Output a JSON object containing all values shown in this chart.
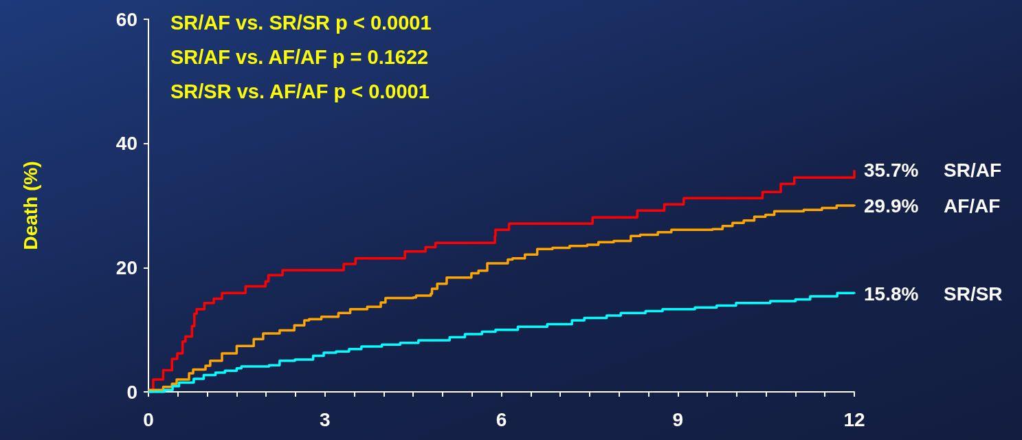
{
  "chart_data": {
    "type": "step",
    "ylabel": "Death (%)",
    "xlim": [
      0,
      12
    ],
    "xticks": [
      0,
      {
        "value": 0.5,
        "label": null
      },
      {
        "value": 1,
        "label": null
      },
      {
        "value": 1.5,
        "label": null
      },
      {
        "value": 2,
        "label": null
      },
      {
        "value": 2.5,
        "label": null
      },
      3,
      {
        "value": 3.5,
        "label": null
      },
      {
        "value": 4,
        "label": null
      },
      {
        "value": 4.5,
        "label": null
      },
      {
        "value": 5,
        "label": null
      },
      {
        "value": 5.5,
        "label": null
      },
      6,
      {
        "value": 6.5,
        "label": null
      },
      {
        "value": 7,
        "label": null
      },
      {
        "value": 7.5,
        "label": null
      },
      {
        "value": 8,
        "label": null
      },
      {
        "value": 8.5,
        "label": null
      },
      9,
      {
        "value": 9.5,
        "label": null
      },
      {
        "value": 10,
        "label": null
      },
      {
        "value": 10.5,
        "label": null
      },
      {
        "value": 11,
        "label": null
      },
      {
        "value": 11.5,
        "label": null
      },
      12
    ],
    "ylim": [
      0,
      60
    ],
    "yticks": [
      0,
      20,
      40,
      60
    ],
    "grid": false,
    "annotations": [
      "SR/AF vs. SR/SR p < 0.0001",
      "SR/AF vs. AF/AF p = 0.1622",
      "SR/SR vs. AF/AF p < 0.0001"
    ],
    "series": [
      {
        "name": "SR/AF",
        "color": "#ff0000",
        "x": [
          0,
          0.08,
          0.25,
          0.4,
          0.49,
          0.58,
          0.63,
          0.74,
          0.78,
          0.82,
          0.95,
          1.11,
          1.25,
          1.65,
          1.99,
          2.04,
          2.28,
          3.32,
          3.52,
          4.36,
          4.71,
          4.88,
          5.89,
          5.9,
          6.13,
          7.55,
          8.31,
          8.77,
          9.1,
          10.44,
          10.75,
          10.98,
          12
        ],
        "values": [
          0,
          2.0,
          3.5,
          5.3,
          6.2,
          8.1,
          8.9,
          10.6,
          12.6,
          13.3,
          14.3,
          15.0,
          15.9,
          17.0,
          17.8,
          18.8,
          19.6,
          20.6,
          21.5,
          22.6,
          23.3,
          24.0,
          25.1,
          26.1,
          27.1,
          28.1,
          29.2,
          30.2,
          31.2,
          32.2,
          33.5,
          34.5,
          35.7
        ],
        "value_labels": [
          null,
          null,
          null,
          null,
          null,
          null,
          null,
          null,
          null,
          null,
          null,
          null,
          null,
          null,
          null,
          null,
          null,
          null,
          null,
          null,
          null,
          null,
          null,
          null,
          null,
          null,
          null,
          null,
          null,
          null,
          null,
          null,
          "35.7%"
        ]
      },
      {
        "name": "AF/AF",
        "color": "#ffa500",
        "x": [
          0,
          0.25,
          0.4,
          0.48,
          0.69,
          0.76,
          0.97,
          1.05,
          1.25,
          1.5,
          1.79,
          1.95,
          2.23,
          2.48,
          2.65,
          2.73,
          2.94,
          3.23,
          3.43,
          3.72,
          3.95,
          4.03,
          4.5,
          4.55,
          4.8,
          4.82,
          4.91,
          5.07,
          5.49,
          5.61,
          5.76,
          6.11,
          6.19,
          6.4,
          6.61,
          6.87,
          7.16,
          7.46,
          7.65,
          7.91,
          8.2,
          8.36,
          8.66,
          8.89,
          9.59,
          9.76,
          9.93,
          10.12,
          10.3,
          10.49,
          10.64,
          11.14,
          11.45,
          11.7,
          12
        ],
        "values": [
          0.3,
          0.8,
          1.3,
          2.0,
          3.0,
          3.6,
          4.2,
          5.0,
          6.2,
          7.4,
          8.5,
          9.4,
          9.9,
          10.7,
          11.5,
          11.7,
          12.1,
          12.7,
          13.3,
          13.7,
          14.4,
          15.1,
          15.2,
          15.5,
          15.8,
          16.6,
          17.4,
          18.4,
          19.1,
          19.5,
          20.7,
          21.3,
          21.5,
          22.1,
          23.0,
          23.2,
          23.5,
          23.7,
          24.1,
          24.3,
          25.1,
          25.3,
          25.7,
          26.1,
          26.2,
          26.7,
          27.2,
          27.6,
          28.2,
          28.5,
          29.1,
          29.3,
          29.6,
          30.0,
          29.9
        ],
        "value_labels": [
          null,
          null,
          null,
          null,
          null,
          null,
          null,
          null,
          null,
          null,
          null,
          null,
          null,
          null,
          null,
          null,
          null,
          null,
          null,
          null,
          null,
          null,
          null,
          null,
          null,
          null,
          null,
          null,
          null,
          null,
          null,
          null,
          null,
          null,
          null,
          null,
          null,
          null,
          null,
          null,
          null,
          null,
          null,
          null,
          null,
          null,
          null,
          null,
          null,
          null,
          null,
          null,
          null,
          null,
          "29.9%"
        ]
      },
      {
        "name": "SR/SR",
        "color": "#00ffff",
        "x": [
          0,
          0.27,
          0.41,
          0.52,
          0.77,
          0.94,
          1.14,
          1.3,
          1.5,
          1.58,
          2.05,
          2.23,
          2.49,
          2.8,
          2.98,
          3.19,
          3.41,
          3.62,
          3.97,
          4.28,
          4.59,
          5.12,
          5.38,
          5.67,
          5.9,
          6.28,
          6.78,
          7.2,
          7.41,
          7.79,
          8.03,
          8.45,
          8.74,
          9.29,
          9.66,
          9.99,
          10.57,
          11.0,
          11.25,
          11.71,
          12
        ],
        "values": [
          0,
          0.3,
          0.9,
          1.5,
          2.1,
          2.7,
          3.1,
          3.4,
          3.8,
          4.1,
          4.3,
          5.0,
          5.2,
          5.8,
          6.3,
          6.5,
          6.9,
          7.3,
          7.6,
          7.9,
          8.3,
          8.8,
          9.3,
          9.7,
          10.0,
          10.5,
          10.9,
          11.5,
          11.9,
          12.3,
          12.7,
          13.0,
          13.3,
          13.6,
          13.9,
          14.3,
          14.6,
          14.9,
          15.4,
          15.9,
          15.8
        ],
        "value_labels": [
          null,
          null,
          null,
          null,
          null,
          null,
          null,
          null,
          null,
          null,
          null,
          null,
          null,
          null,
          null,
          null,
          null,
          null,
          null,
          null,
          null,
          null,
          null,
          null,
          null,
          null,
          null,
          null,
          null,
          null,
          null,
          null,
          null,
          null,
          null,
          null,
          null,
          null,
          null,
          null,
          "15.8%"
        ]
      }
    ]
  }
}
